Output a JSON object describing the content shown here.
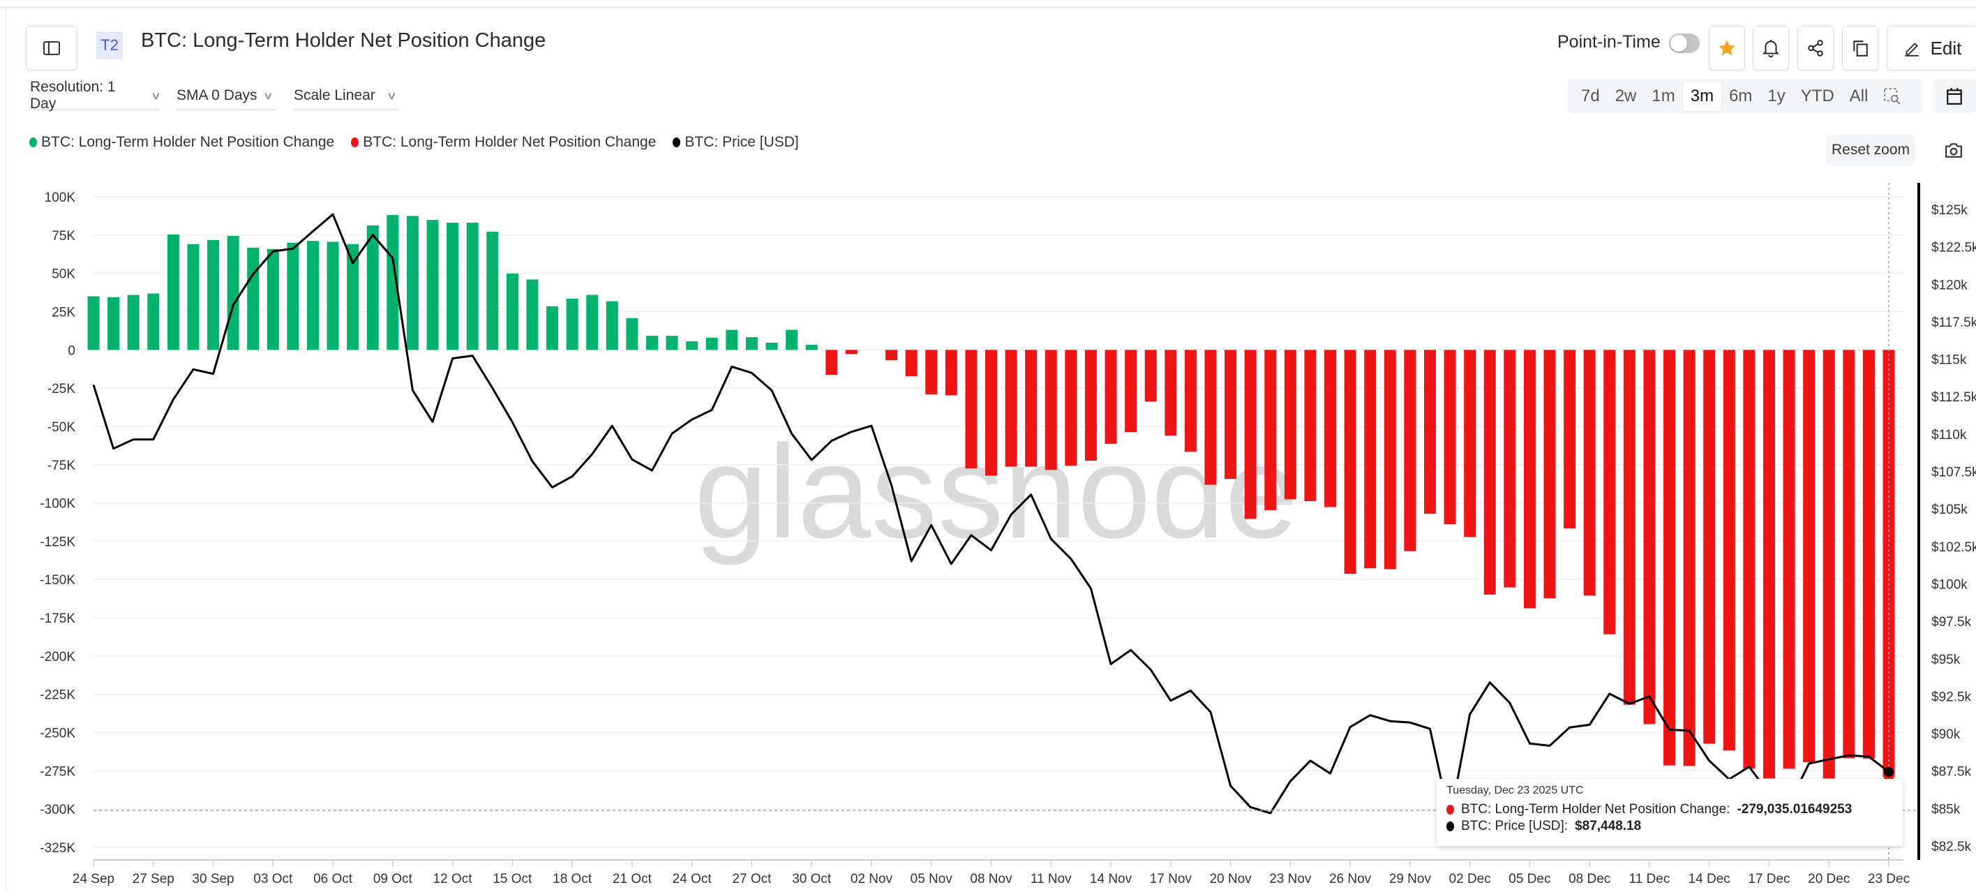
{
  "header": {
    "badge": "T2",
    "title": "BTC: Long-Term Holder Net Position Change",
    "point_in_time_label": "Point-in-Time",
    "point_in_time_on": false,
    "edit_label": "Edit",
    "favorite_color": "#f5a623"
  },
  "controls": {
    "resolution": "Resolution: 1 Day",
    "sma": "SMA 0 Days",
    "scale": "Scale Linear",
    "ranges": [
      "7d",
      "2w",
      "1m",
      "3m",
      "6m",
      "1y",
      "YTD",
      "All"
    ],
    "active_range": "3m",
    "reset_zoom": "Reset zoom"
  },
  "legend": [
    {
      "label": "BTC: Long-Term Holder Net Position Change",
      "color": "#00b26b"
    },
    {
      "label": "BTC: Long-Term Holder Net Position Change",
      "color": "#f01515"
    },
    {
      "label": "BTC: Price [USD]",
      "color": "#000000"
    }
  ],
  "watermark": "glassnode",
  "tooltip": {
    "date": "Tuesday, Dec 23 2025 UTC",
    "rows": [
      {
        "label": "BTC: Long-Term Holder Net Position Change: ",
        "value": "-279,035.01649253",
        "color": "#f01515"
      },
      {
        "label": "BTC: Price [USD]: ",
        "value": "$87,448.18",
        "color": "#000000"
      }
    ]
  },
  "chart_data": {
    "type": "bar+line",
    "grid": true,
    "x_tick_labels": [
      "24 Sep",
      "27 Sep",
      "30 Sep",
      "03 Oct",
      "06 Oct",
      "09 Oct",
      "12 Oct",
      "15 Oct",
      "18 Oct",
      "21 Oct",
      "24 Oct",
      "27 Oct",
      "30 Oct",
      "02 Nov",
      "05 Nov",
      "08 Nov",
      "11 Nov",
      "14 Nov",
      "17 Nov",
      "20 Nov",
      "23 Nov",
      "26 Nov",
      "29 Nov",
      "02 Dec",
      "05 Dec",
      "08 Dec",
      "11 Dec",
      "14 Dec",
      "17 Dec",
      "20 Dec",
      "23 Dec"
    ],
    "y_left": {
      "ylim": [
        -325000,
        100000
      ],
      "ticks": [
        100000,
        75000,
        50000,
        25000,
        0,
        -25000,
        -50000,
        -75000,
        -100000,
        -125000,
        -150000,
        -175000,
        -200000,
        -225000,
        -250000,
        -275000,
        -300000,
        -325000
      ],
      "tick_labels": [
        "100K",
        "75K",
        "50K",
        "25K",
        "0",
        "-25K",
        "-50K",
        "-75K",
        "-100K",
        "-125K",
        "-150K",
        "-175K",
        "-200K",
        "-225K",
        "-250K",
        "-275K",
        "-300K",
        "-325K"
      ]
    },
    "y_right": {
      "ylim": [
        82500,
        125000
      ],
      "ticks": [
        125000,
        122500,
        120000,
        117500,
        115000,
        112500,
        110000,
        107500,
        105000,
        102500,
        100000,
        97500,
        95000,
        92500,
        90000,
        87500,
        85000,
        82500
      ],
      "tick_labels": [
        "$125k",
        "$122.5k",
        "$120k",
        "$117.5k",
        "$115k",
        "$112.5k",
        "$110k",
        "$107.5k",
        "$105k",
        "$102.5k",
        "$100k",
        "$97.5k",
        "$95k",
        "$92.5k",
        "$90k",
        "$87.5k",
        "$85k",
        "$82.5k"
      ]
    },
    "x": [
      "2025-09-24",
      "2025-09-25",
      "2025-09-26",
      "2025-09-27",
      "2025-09-28",
      "2025-09-29",
      "2025-09-30",
      "2025-10-01",
      "2025-10-02",
      "2025-10-03",
      "2025-10-04",
      "2025-10-05",
      "2025-10-06",
      "2025-10-07",
      "2025-10-08",
      "2025-10-09",
      "2025-10-10",
      "2025-10-11",
      "2025-10-12",
      "2025-10-13",
      "2025-10-14",
      "2025-10-15",
      "2025-10-16",
      "2025-10-17",
      "2025-10-18",
      "2025-10-19",
      "2025-10-20",
      "2025-10-21",
      "2025-10-22",
      "2025-10-23",
      "2025-10-24",
      "2025-10-25",
      "2025-10-26",
      "2025-10-27",
      "2025-10-28",
      "2025-10-29",
      "2025-10-30",
      "2025-10-31",
      "2025-11-01",
      "2025-11-02",
      "2025-11-03",
      "2025-11-04",
      "2025-11-05",
      "2025-11-06",
      "2025-11-07",
      "2025-11-08",
      "2025-11-09",
      "2025-11-10",
      "2025-11-11",
      "2025-11-12",
      "2025-11-13",
      "2025-11-14",
      "2025-11-15",
      "2025-11-16",
      "2025-11-17",
      "2025-11-18",
      "2025-11-19",
      "2025-11-20",
      "2025-11-21",
      "2025-11-22",
      "2025-11-23",
      "2025-11-24",
      "2025-11-25",
      "2025-11-26",
      "2025-11-27",
      "2025-11-28",
      "2025-11-29",
      "2025-11-30",
      "2025-12-01",
      "2025-12-02",
      "2025-12-03",
      "2025-12-04",
      "2025-12-05",
      "2025-12-06",
      "2025-12-07",
      "2025-12-08",
      "2025-12-09",
      "2025-12-10",
      "2025-12-11",
      "2025-12-12",
      "2025-12-13",
      "2025-12-14",
      "2025-12-15",
      "2025-12-16",
      "2025-12-17",
      "2025-12-18",
      "2025-12-19",
      "2025-12-20",
      "2025-12-21",
      "2025-12-22",
      "2025-12-23"
    ],
    "series": [
      {
        "name": "BTC: Long-Term Holder Net Position Change",
        "type": "bar",
        "axis": "left",
        "positive_color": "#00b26b",
        "negative_color": "#f01515",
        "values": [
          35000,
          34400,
          35900,
          36800,
          75400,
          69100,
          71800,
          74500,
          66800,
          65900,
          70000,
          71200,
          70600,
          69100,
          81300,
          88100,
          87500,
          84900,
          83100,
          83100,
          77200,
          49900,
          46000,
          28500,
          33500,
          35900,
          31800,
          20800,
          9200,
          9200,
          5600,
          8000,
          13100,
          8300,
          4700,
          13100,
          3300,
          -16300,
          -2700,
          0,
          -6800,
          -17200,
          -29100,
          -29700,
          -77400,
          -82200,
          -76300,
          -76300,
          -78300,
          -75700,
          -72400,
          -61400,
          -53700,
          -33800,
          -56100,
          -66500,
          -88100,
          -84300,
          -110400,
          -104700,
          -97600,
          -98800,
          -102700,
          -146300,
          -142700,
          -143300,
          -131500,
          -107100,
          -113900,
          -122300,
          -159900,
          -155200,
          -168800,
          -162300,
          -116600,
          -160500,
          -185800,
          -231800,
          -244500,
          -271500,
          -271800,
          -257300,
          -261700,
          -273600,
          -280000,
          -273600,
          -269400,
          -280000,
          -266800,
          -267000,
          -279035.01649253
        ]
      },
      {
        "name": "BTC: Price [USD]",
        "type": "line",
        "axis": "right",
        "color": "#000000",
        "values": [
          113290,
          109030,
          109640,
          109640,
          112310,
          114320,
          114020,
          118610,
          120680,
          122200,
          122380,
          123540,
          124670,
          121410,
          123300,
          121740,
          112920,
          110820,
          115050,
          115230,
          113070,
          110790,
          108180,
          106440,
          107170,
          108660,
          110550,
          108300,
          107570,
          110030,
          110970,
          111610,
          114500,
          114080,
          112920,
          110030,
          108270,
          109550,
          110150,
          110550,
          106590,
          101510,
          103920,
          101330,
          103250,
          102240,
          104620,
          105960,
          103000,
          101670,
          99690,
          94640,
          95580,
          94270,
          92200,
          92870,
          91440,
          86520,
          85090,
          84690,
          86820,
          88190,
          87340,
          90440,
          91230,
          90830,
          90740,
          90320,
          84260,
          91290,
          93420,
          92050,
          89340,
          89190,
          90410,
          90590,
          92660,
          91990,
          92480,
          90260,
          90200,
          88190,
          86950,
          87790,
          86000,
          85300,
          88000,
          88280,
          88550,
          88460,
          87448.18
        ]
      }
    ]
  }
}
